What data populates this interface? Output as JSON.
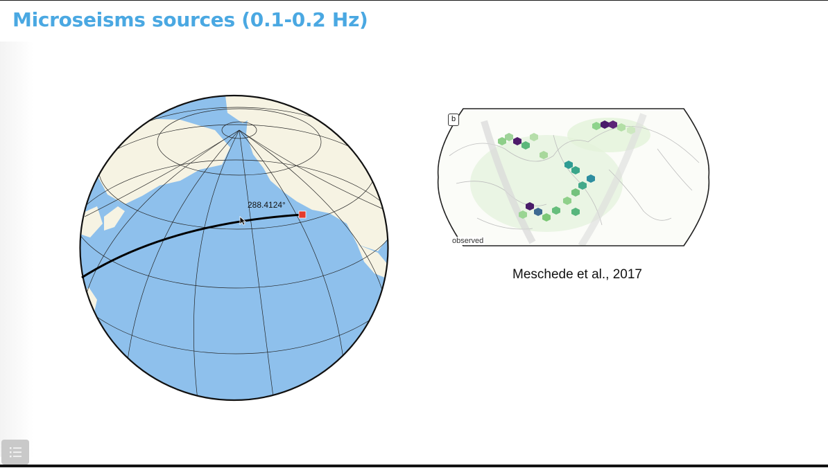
{
  "slide": {
    "title": "Microseisms sources (0.1-0.2 Hz)",
    "citation": "Meschede et al., 2017"
  },
  "globe": {
    "distance_label": "288.4124°",
    "colors": {
      "ocean": "#8ec0ec",
      "land": "#f6f3e3",
      "path": "#000000",
      "marker": "#e53a2b"
    }
  },
  "map": {
    "panel_label": "b",
    "annotation": "observed"
  },
  "icons": {
    "cursor": "arrow-cursor-icon",
    "menu": "slide-menu-icon",
    "marker": "red-square-marker-icon"
  }
}
